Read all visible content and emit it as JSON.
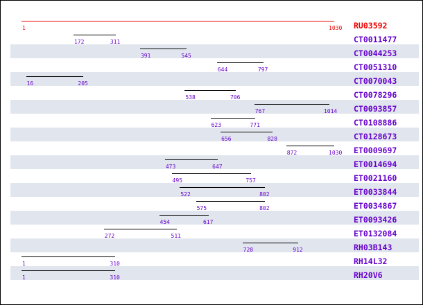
{
  "colors": {
    "reference": "#ee0000",
    "hit": "#6600cc",
    "line": "#000000",
    "stripe": "#e1e6ee"
  },
  "reference": {
    "name": "RU03592",
    "start": 1,
    "end": 1030
  },
  "scale": {
    "min": 1,
    "max": 1030
  },
  "alignments": [
    {
      "name": "CT0011477",
      "start": 172,
      "end": 311
    },
    {
      "name": "CT0044253",
      "start": 391,
      "end": 545
    },
    {
      "name": "CT0051310",
      "start": 644,
      "end": 797
    },
    {
      "name": "CT0070043",
      "start": 16,
      "end": 205
    },
    {
      "name": "CT0078296",
      "start": 538,
      "end": 706
    },
    {
      "name": "CT0093857",
      "start": 767,
      "end": 1014
    },
    {
      "name": "CT0108886",
      "start": 623,
      "end": 771
    },
    {
      "name": "CT0128673",
      "start": 656,
      "end": 828
    },
    {
      "name": "ET0009697",
      "start": 872,
      "end": 1030
    },
    {
      "name": "ET0014694",
      "start": 473,
      "end": 647
    },
    {
      "name": "ET0021160",
      "start": 495,
      "end": 757
    },
    {
      "name": "ET0033844",
      "start": 522,
      "end": 802
    },
    {
      "name": "ET0034867",
      "start": 575,
      "end": 802
    },
    {
      "name": "ET0093426",
      "start": 454,
      "end": 617
    },
    {
      "name": "ET0132084",
      "start": 272,
      "end": 511
    },
    {
      "name": "RH03B143",
      "start": 728,
      "end": 912
    },
    {
      "name": "RH14L32",
      "start": 1,
      "end": 310
    },
    {
      "name": "RH20V6",
      "start": 1,
      "end": 310
    }
  ]
}
